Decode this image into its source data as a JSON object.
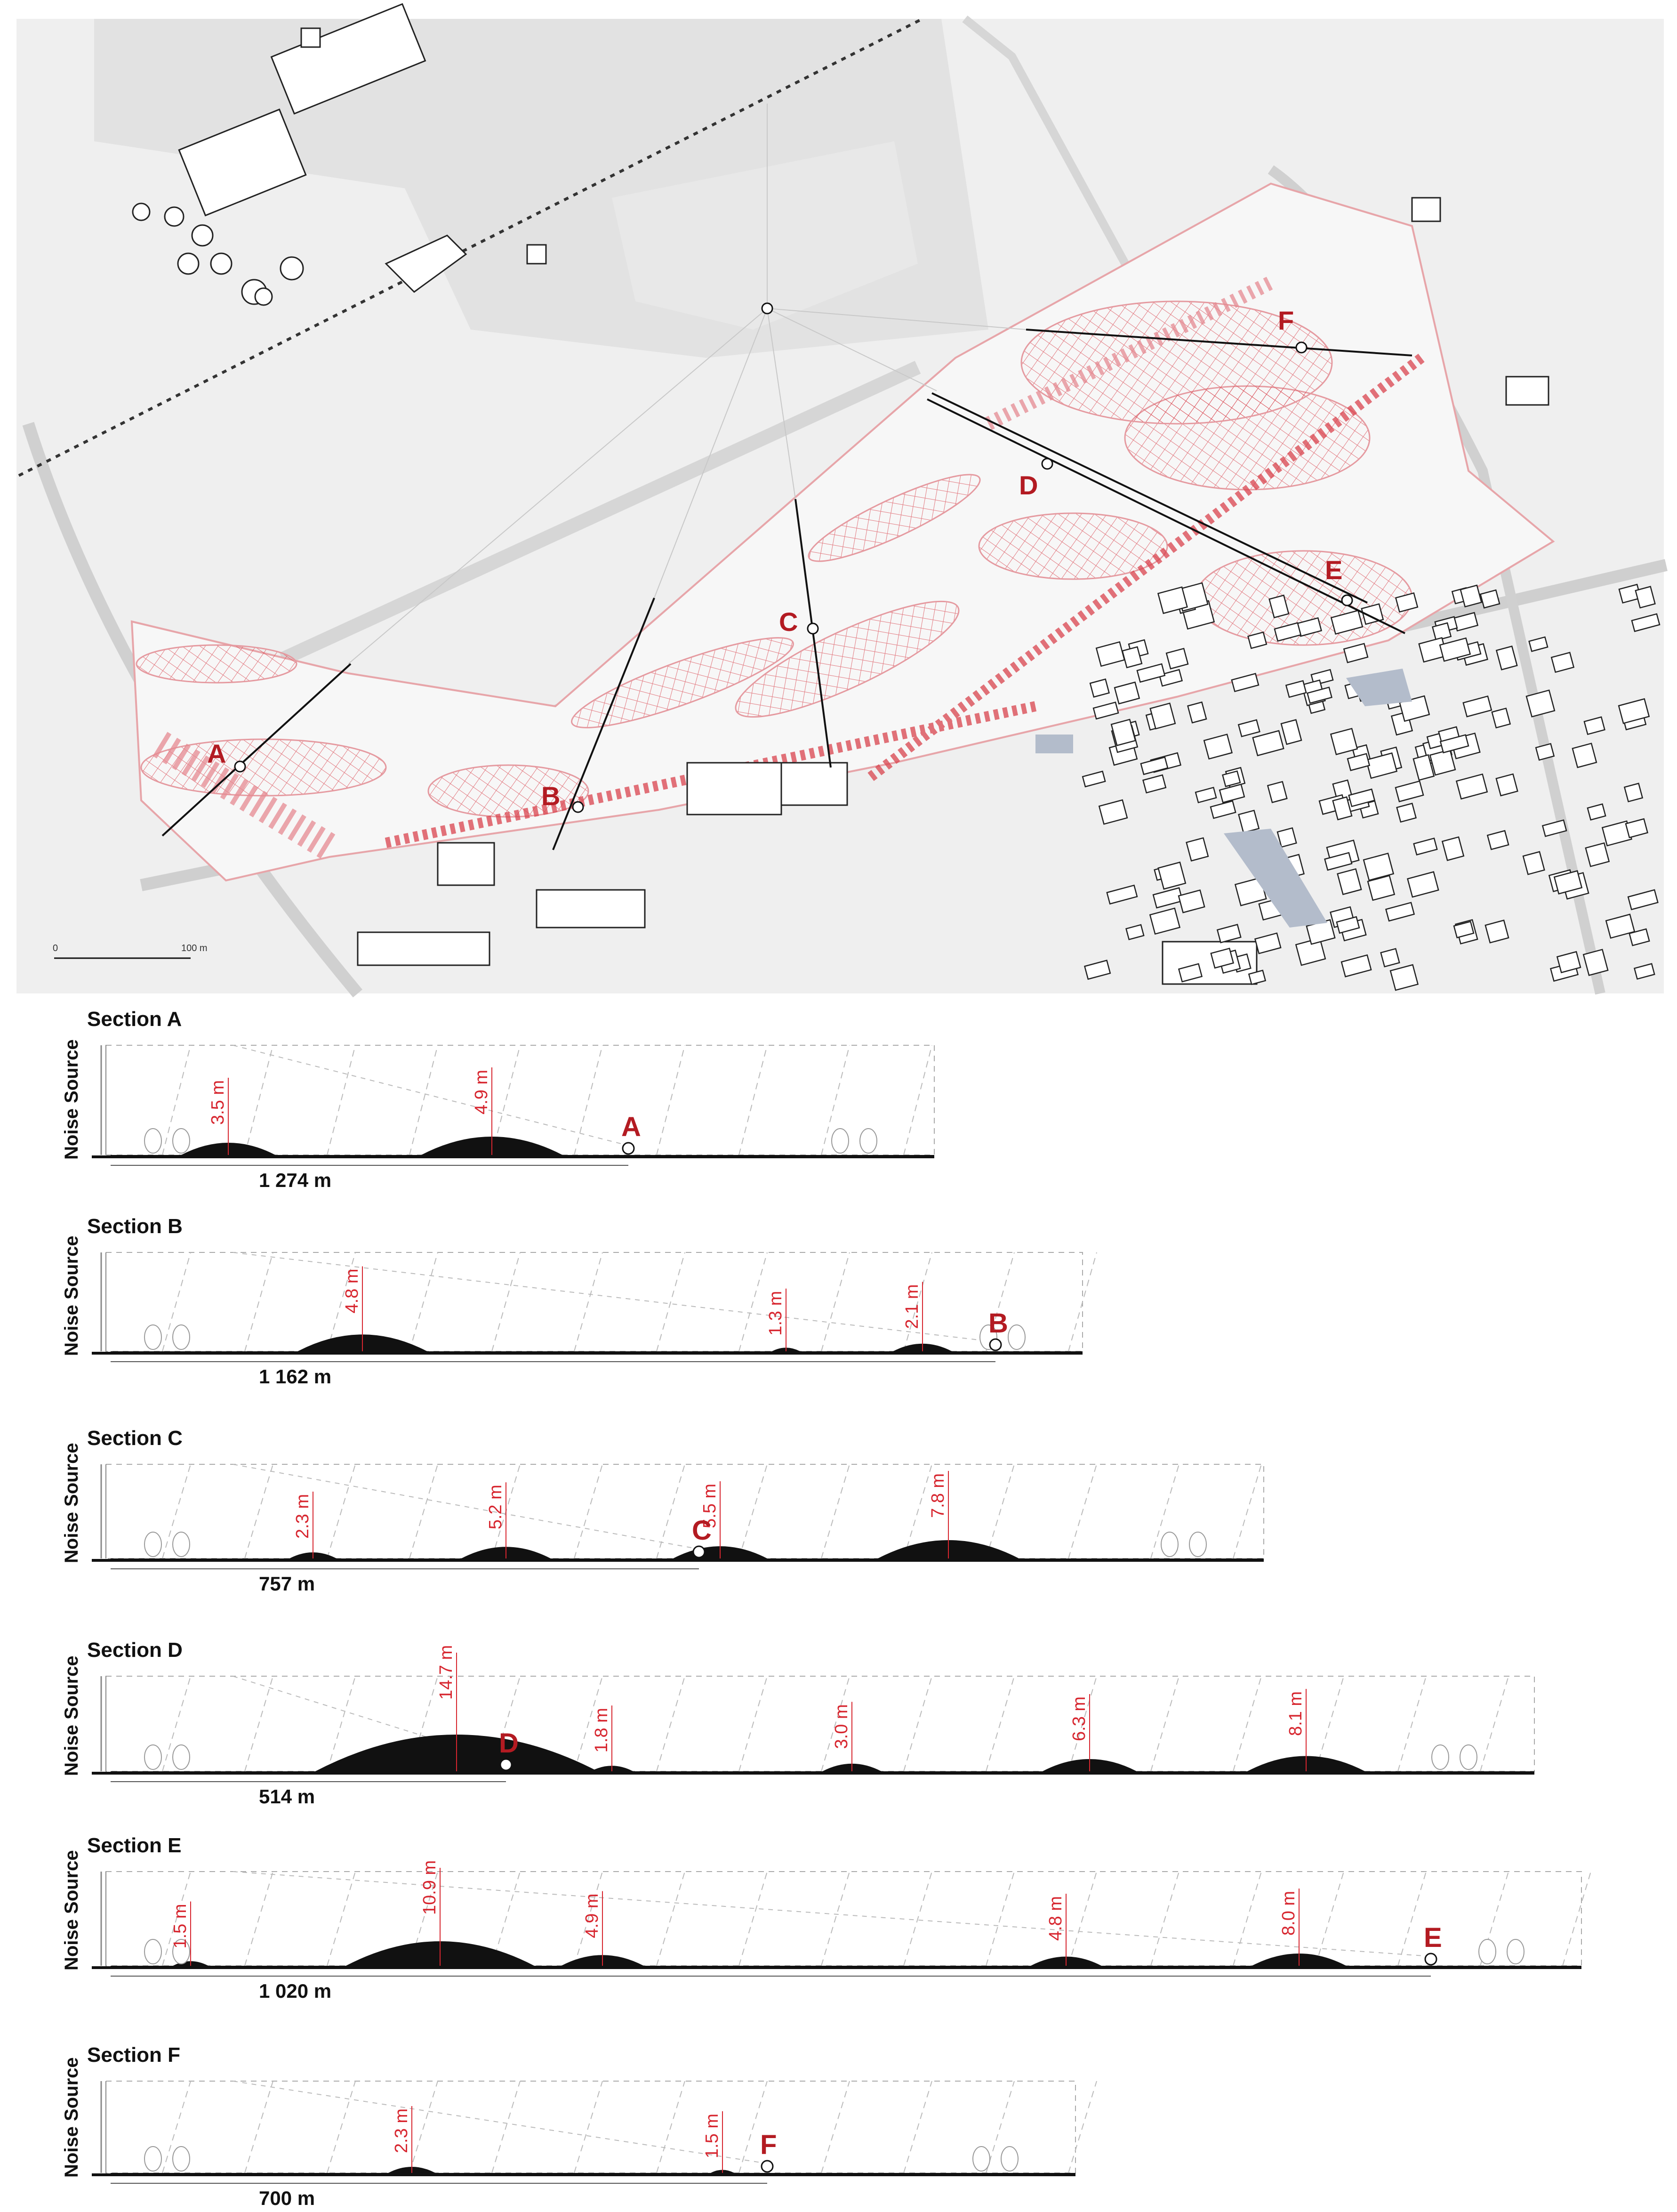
{
  "map": {
    "scale_bar": {
      "start": "0",
      "end": "100 m"
    },
    "points": [
      "A",
      "B",
      "C",
      "D",
      "E",
      "F"
    ],
    "colors": {
      "hatch": "#d9434d",
      "point_label": "#b31b22",
      "building": "#ffffff",
      "ground": "#efefef"
    }
  },
  "sections": [
    {
      "title": "Section A",
      "noise_label": "Noise Source",
      "distance": "1 274 m",
      "point": "A",
      "heights": [
        "3.5 m",
        "4.9 m"
      ]
    },
    {
      "title": "Section B",
      "noise_label": "Noise Source",
      "distance": "1 162 m",
      "point": "B",
      "heights": [
        "4.8 m",
        "1.3 m",
        "2.1 m"
      ]
    },
    {
      "title": "Section C",
      "noise_label": "Noise Source",
      "distance": "757 m",
      "point": "C",
      "heights": [
        "2.3 m",
        "5.2 m",
        "5.5 m",
        "7.8 m"
      ]
    },
    {
      "title": "Section D",
      "noise_label": "Noise Source",
      "distance": "514 m",
      "point": "D",
      "heights": [
        "14.7 m",
        "1.8 m",
        "3.0 m",
        "6.3 m",
        "8.1 m"
      ]
    },
    {
      "title": "Section E",
      "noise_label": "Noise Source",
      "distance": "1 020 m",
      "point": "E",
      "heights": [
        "1.5 m",
        "10.9 m",
        "4.9 m",
        "4.8 m",
        "8.0 m"
      ]
    },
    {
      "title": "Section F",
      "noise_label": "Noise Source",
      "distance": "700 m",
      "point": "F",
      "heights": [
        "2.3 m",
        "1.5 m"
      ]
    }
  ]
}
